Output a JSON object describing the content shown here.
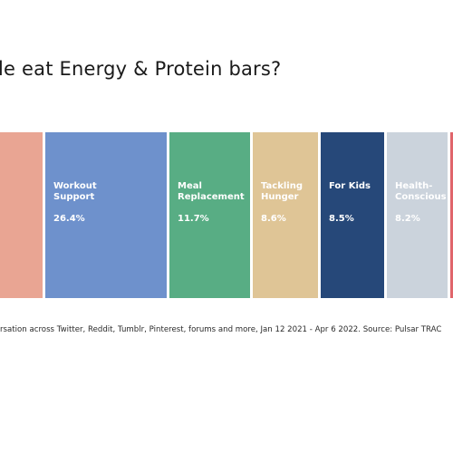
{
  "title": "le eat Energy & Protein bars?",
  "source_note": "rsation across Twitter, Reddit, Tumblr, Pinterest, forums and more, Jan 12 2021 - Apr 6 2022. Source: Pulsar TRAC",
  "chart_data": {
    "type": "bar",
    "layout": "stacked-horizontal-share",
    "categories": [
      {
        "label": [],
        "value": null,
        "display": "",
        "color": "#e9a593"
      },
      {
        "label": [
          "Workout",
          "Support"
        ],
        "value": 26.4,
        "display": "26.4%",
        "color": "#6e91cc"
      },
      {
        "label": [
          "Meal",
          "Replacement"
        ],
        "value": 11.7,
        "display": "11.7%",
        "color": "#58ad84"
      },
      {
        "label": [
          "Tackling",
          "Hunger"
        ],
        "value": 8.6,
        "display": "8.6%",
        "color": "#dfc596"
      },
      {
        "label": [
          "For Kids"
        ],
        "value": 8.5,
        "display": "8.5%",
        "color": "#264879"
      },
      {
        "label": [
          "Health-",
          "Conscious"
        ],
        "value": 8.2,
        "display": "8.2%",
        "color": "#cbd3dc"
      },
      {
        "label": [],
        "value": null,
        "display": "",
        "color": "#e0656b"
      }
    ]
  }
}
